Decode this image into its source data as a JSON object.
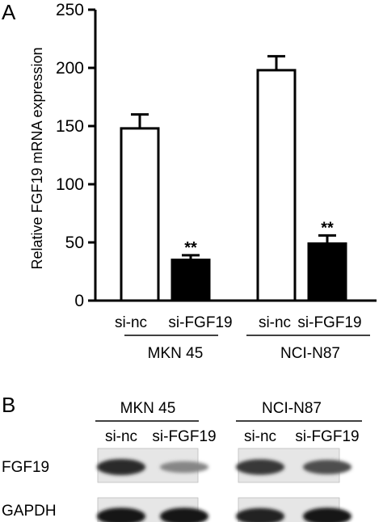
{
  "panel_a_label": "A",
  "panel_b_label": "B",
  "chart_data": {
    "type": "bar",
    "title": "",
    "xlabel": "",
    "ylabel": "Relative FGF19 mRNA expression",
    "ylim": [
      0,
      250
    ],
    "yticks": [
      0,
      50,
      100,
      150,
      200,
      250
    ],
    "grid": false,
    "legend": "none",
    "groups": [
      {
        "name": "MKN  45",
        "bars": [
          {
            "category": "si-nc",
            "value": 148,
            "error": 12,
            "fill": "#ffffff",
            "significance": ""
          },
          {
            "category": "si-FGF19",
            "value": 35,
            "error": 4,
            "fill": "#000000",
            "significance": "**"
          }
        ]
      },
      {
        "name": "NCI-N87",
        "bars": [
          {
            "category": "si-nc",
            "value": 198,
            "error": 12,
            "fill": "#ffffff",
            "significance": ""
          },
          {
            "category": "si-FGF19",
            "value": 49,
            "error": 7,
            "fill": "#000000",
            "significance": "**"
          }
        ]
      }
    ]
  },
  "western_blot": {
    "groups": [
      {
        "name": "MKN  45",
        "lanes": [
          "si-nc",
          "si-FGF19"
        ]
      },
      {
        "name": "NCI-N87",
        "lanes": [
          "si-nc",
          "si-FGF19"
        ]
      }
    ],
    "rows": [
      {
        "label": "FGF19",
        "intensities": [
          0.85,
          0.45,
          0.8,
          0.7
        ]
      },
      {
        "label": "GAPDH",
        "intensities": [
          0.95,
          0.95,
          0.9,
          0.95
        ]
      }
    ]
  }
}
